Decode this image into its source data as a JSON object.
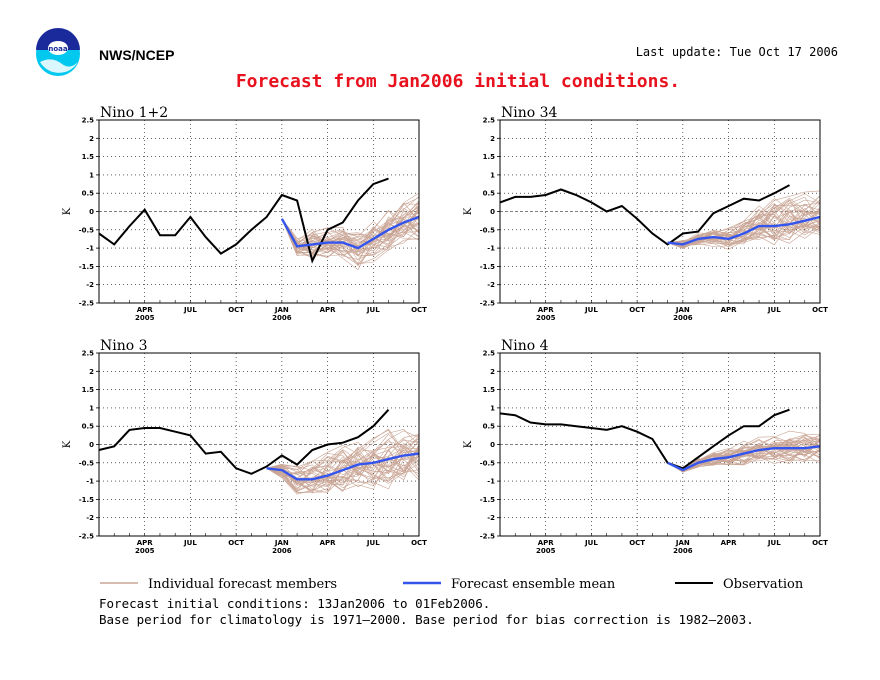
{
  "header": {
    "org": "NWS/NCEP",
    "updated": "Last update: Tue Oct 17 2006",
    "title": "Forecast from Jan2006 initial conditions.",
    "title_color": "#e8121f"
  },
  "logo_text": "noaa",
  "colors": {
    "members": "#c9a595",
    "mean": "#3355ee",
    "obs": "#000000"
  },
  "legend": {
    "members": "Individual forecast members",
    "mean": "Forecast ensemble mean",
    "obs": "Observation"
  },
  "footer": {
    "line1": "Forecast initial conditions: 13Jan2006 to 01Feb2006.",
    "line2": "Base period for climatology is 1971–2000. Base period for bias correction is 1982–2003."
  },
  "chart_data": [
    {
      "type": "line",
      "title": "Nino 1+2",
      "ylabel": "K",
      "ylim": [
        -2.5,
        2.5
      ],
      "yticks": [
        "2.5",
        "2",
        "1.5",
        "1",
        "0.5",
        "0",
        "-0.5",
        "-1",
        "-1.5",
        "-2",
        "-2.5"
      ],
      "xlim": [
        0,
        21
      ],
      "xticks": [
        {
          "x": 3,
          "label": "APR",
          "year": "2005"
        },
        {
          "x": 6,
          "label": "JUL"
        },
        {
          "x": 9,
          "label": "OCT"
        },
        {
          "x": 12,
          "label": "JAN",
          "year": "2006"
        },
        {
          "x": 15,
          "label": "APR"
        },
        {
          "x": 18,
          "label": "JUL"
        },
        {
          "x": 21,
          "label": "OCT"
        }
      ],
      "obs": {
        "x": [
          0,
          1,
          2,
          3,
          4,
          5,
          6,
          7,
          8,
          9,
          10,
          11,
          12,
          13,
          14,
          15,
          16,
          17,
          18,
          19,
          20
        ],
        "y": [
          -0.6,
          -0.9,
          -0.4,
          0.05,
          -0.65,
          -0.65,
          -0.15,
          -0.7,
          -1.15,
          -0.9,
          -0.5,
          -0.15,
          0.45,
          0.3,
          -1.35,
          -0.5,
          -0.3,
          0.3,
          0.75,
          0.9,
          null
        ]
      },
      "mean": {
        "x": [
          12,
          13,
          14,
          15,
          16,
          17,
          18,
          19,
          20,
          21
        ],
        "y": [
          -0.2,
          -0.95,
          -0.9,
          -0.85,
          -0.85,
          -1.0,
          -0.75,
          -0.5,
          -0.3,
          -0.15
        ]
      },
      "members": {
        "start": 12,
        "n": 40,
        "spread_lo": [
          0,
          0.5,
          0.6,
          0.6,
          0.7,
          0.8,
          0.8,
          0.9,
          0.9,
          1.0
        ],
        "spread_hi": [
          0,
          0.4,
          0.7,
          0.5,
          0.5,
          0.6,
          0.8,
          0.9,
          1.0,
          1.0
        ]
      }
    },
    {
      "type": "line",
      "title": "Nino 34",
      "ylabel": "K",
      "ylim": [
        -2.5,
        2.5
      ],
      "yticks": [
        "2.5",
        "2",
        "1.5",
        "1",
        "0.5",
        "0",
        "-0.5",
        "-1",
        "-1.5",
        "-2",
        "-2.5"
      ],
      "xlim": [
        0,
        21
      ],
      "xticks": [
        {
          "x": 3,
          "label": "APR",
          "year": "2005"
        },
        {
          "x": 6,
          "label": "JUL"
        },
        {
          "x": 9,
          "label": "OCT"
        },
        {
          "x": 12,
          "label": "JAN",
          "year": "2006"
        },
        {
          "x": 15,
          "label": "APR"
        },
        {
          "x": 18,
          "label": "JUL"
        },
        {
          "x": 21,
          "label": "OCT"
        }
      ],
      "obs": {
        "x": [
          0,
          1,
          2,
          3,
          4,
          5,
          6,
          7,
          8,
          9,
          10,
          11,
          12,
          13,
          14,
          15,
          16,
          17,
          18,
          19,
          20
        ],
        "y": [
          0.25,
          0.4,
          0.4,
          0.45,
          0.6,
          0.45,
          0.25,
          0.0,
          0.15,
          -0.2,
          -0.6,
          -0.9,
          -0.6,
          -0.55,
          -0.05,
          0.15,
          0.35,
          0.3,
          0.5,
          0.72,
          null
        ]
      },
      "mean": {
        "x": [
          11,
          12,
          13,
          14,
          15,
          16,
          17,
          18,
          19,
          20,
          21
        ],
        "y": [
          -0.85,
          -0.9,
          -0.75,
          -0.7,
          -0.75,
          -0.6,
          -0.4,
          -0.4,
          -0.35,
          -0.25,
          -0.15
        ]
      },
      "members": {
        "start": 11,
        "n": 40,
        "spread_lo": [
          0,
          0.2,
          0.3,
          0.4,
          0.4,
          0.5,
          0.6,
          0.7,
          0.7,
          0.8,
          0.8
        ],
        "spread_hi": [
          0,
          0.2,
          0.3,
          0.4,
          0.5,
          0.6,
          0.8,
          1.2,
          1.0,
          0.9,
          0.9
        ]
      }
    },
    {
      "type": "line",
      "title": "Nino 3",
      "ylabel": "K",
      "ylim": [
        -2.5,
        2.5
      ],
      "yticks": [
        "2.5",
        "2",
        "1.5",
        "1",
        "0.5",
        "0",
        "-0.5",
        "-1",
        "-1.5",
        "-2",
        "-2.5"
      ],
      "xlim": [
        0,
        21
      ],
      "xticks": [
        {
          "x": 3,
          "label": "APR",
          "year": "2005"
        },
        {
          "x": 6,
          "label": "JUL"
        },
        {
          "x": 9,
          "label": "OCT"
        },
        {
          "x": 12,
          "label": "JAN",
          "year": "2006"
        },
        {
          "x": 15,
          "label": "APR"
        },
        {
          "x": 18,
          "label": "JUL"
        },
        {
          "x": 21,
          "label": "OCT"
        }
      ],
      "obs": {
        "x": [
          0,
          1,
          2,
          3,
          4,
          5,
          6,
          7,
          8,
          9,
          10,
          11,
          12,
          13,
          14,
          15,
          16,
          17,
          18,
          19,
          20
        ],
        "y": [
          -0.15,
          -0.05,
          0.4,
          0.45,
          0.45,
          0.35,
          0.25,
          -0.25,
          -0.2,
          -0.65,
          -0.8,
          -0.6,
          -0.3,
          -0.55,
          -0.15,
          0.0,
          0.05,
          0.2,
          0.5,
          0.95,
          null
        ]
      },
      "mean": {
        "x": [
          11,
          12,
          13,
          14,
          15,
          16,
          17,
          18,
          19,
          20,
          21
        ],
        "y": [
          -0.65,
          -0.7,
          -0.95,
          -0.95,
          -0.85,
          -0.7,
          -0.55,
          -0.5,
          -0.4,
          -0.3,
          -0.25
        ]
      },
      "members": {
        "start": 11,
        "n": 40,
        "spread_lo": [
          0,
          0.4,
          0.6,
          0.8,
          0.9,
          1.0,
          1.0,
          1.0,
          1.1,
          1.1,
          1.1
        ],
        "spread_hi": [
          0,
          0.3,
          0.6,
          0.9,
          0.9,
          0.8,
          0.9,
          0.9,
          1.0,
          1.0,
          1.0
        ]
      }
    },
    {
      "type": "line",
      "title": "Nino 4",
      "ylabel": "K",
      "ylim": [
        -2.5,
        2.5
      ],
      "yticks": [
        "2.5",
        "2",
        "1.5",
        "1",
        "0.5",
        "0",
        "-0.5",
        "-1",
        "-1.5",
        "-2",
        "-2.5"
      ],
      "xlim": [
        0,
        21
      ],
      "xticks": [
        {
          "x": 3,
          "label": "APR",
          "year": "2005"
        },
        {
          "x": 6,
          "label": "JUL"
        },
        {
          "x": 9,
          "label": "OCT"
        },
        {
          "x": 12,
          "label": "JAN",
          "year": "2006"
        },
        {
          "x": 15,
          "label": "APR"
        },
        {
          "x": 18,
          "label": "JUL"
        },
        {
          "x": 21,
          "label": "OCT"
        }
      ],
      "obs": {
        "x": [
          0,
          1,
          2,
          3,
          4,
          5,
          6,
          7,
          8,
          9,
          10,
          11,
          12,
          13,
          14,
          15,
          16,
          17,
          18,
          19,
          20
        ],
        "y": [
          0.85,
          0.8,
          0.6,
          0.55,
          0.55,
          0.5,
          0.45,
          0.4,
          0.5,
          0.35,
          0.15,
          -0.5,
          -0.65,
          -0.35,
          -0.05,
          0.25,
          0.5,
          0.5,
          0.8,
          0.95,
          null
        ]
      },
      "mean": {
        "x": [
          11,
          12,
          13,
          14,
          15,
          16,
          17,
          18,
          19,
          20,
          21
        ],
        "y": [
          -0.5,
          -0.7,
          -0.5,
          -0.4,
          -0.35,
          -0.25,
          -0.15,
          -0.1,
          -0.1,
          -0.1,
          -0.05
        ]
      },
      "members": {
        "start": 11,
        "n": 40,
        "spread_lo": [
          0,
          0.1,
          0.2,
          0.3,
          0.4,
          0.5,
          0.5,
          0.6,
          0.6,
          0.6,
          0.7
        ],
        "spread_hi": [
          0,
          0.1,
          0.2,
          0.3,
          0.4,
          0.5,
          0.5,
          0.5,
          0.6,
          0.6,
          0.6
        ]
      }
    }
  ]
}
